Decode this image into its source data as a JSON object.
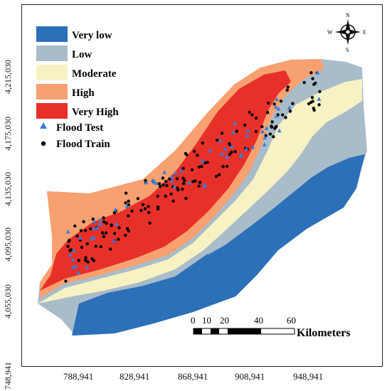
{
  "legend": {
    "classes": [
      {
        "label": "Very low",
        "color": "#2b70b8"
      },
      {
        "label": "Low",
        "color": "#a9bcc9"
      },
      {
        "label": "Moderate",
        "color": "#f7f2c4"
      },
      {
        "label": "High",
        "color": "#f7a170"
      },
      {
        "label": "Very High",
        "color": "#e8302a"
      }
    ],
    "points": [
      {
        "label": "Flood Test",
        "color": "#3a7bd5",
        "symbol": "triangle"
      },
      {
        "label": "Flood Train",
        "color": "#000000",
        "symbol": "circle"
      }
    ]
  },
  "north_arrow": {
    "n": "N",
    "s": "S",
    "e": "E",
    "w": "W"
  },
  "scale_bar": {
    "ticks": [
      "0",
      "10",
      "20",
      "40",
      "60"
    ],
    "unit": "Kilometers"
  },
  "y_axis_labels": [
    "4,215,030",
    "4,175,030",
    "4,135,030",
    "4,095,030",
    "4,055,030",
    "748,941"
  ],
  "x_axis_labels": [
    "788,941",
    "828,941",
    "868,941",
    "908,941",
    "948,941"
  ]
}
